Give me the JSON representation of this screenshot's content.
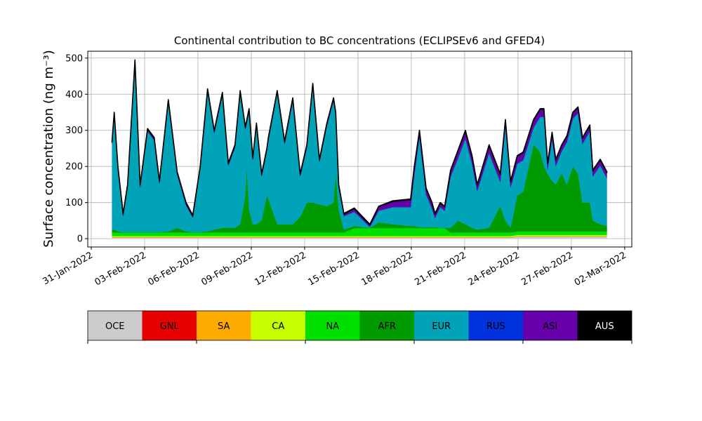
{
  "chart_data": {
    "type": "stacked_area",
    "title": "Continental contribution to BC concentrations (ECLIPSEv6 and GFED4)",
    "y_label": "Surface concentration (ng m⁻³)",
    "grid": true,
    "xlim": [
      "2022-01-30T19:16",
      "2022-03-02T09:36"
    ],
    "ylim": [
      -23,
      519
    ],
    "yticks": [
      0,
      100,
      200,
      300,
      400,
      500
    ],
    "xticks": [
      {
        "value": "2022-01-31T00:00",
        "label": "31-Jan-2022"
      },
      {
        "value": "2022-02-03T00:00",
        "label": "03-Feb-2022"
      },
      {
        "value": "2022-02-06T00:00",
        "label": "06-Feb-2022"
      },
      {
        "value": "2022-02-09T00:00",
        "label": "09-Feb-2022"
      },
      {
        "value": "2022-02-12T00:00",
        "label": "12-Feb-2022"
      },
      {
        "value": "2022-02-15T00:00",
        "label": "15-Feb-2022"
      },
      {
        "value": "2022-02-18T00:00",
        "label": "18-Feb-2022"
      },
      {
        "value": "2022-02-21T00:00",
        "label": "21-Feb-2022"
      },
      {
        "value": "2022-02-24T00:00",
        "label": "24-Feb-2022"
      },
      {
        "value": "2022-02-27T00:00",
        "label": "27-Feb-2022"
      },
      {
        "value": "2022-03-02T00:00",
        "label": "02-Mar-2022"
      }
    ],
    "x": [
      "2022-02-01T04:00",
      "2022-02-01T07:00",
      "2022-02-01T12:00",
      "2022-02-01T19:00",
      "2022-02-02T01:00",
      "2022-02-02T11:00",
      "2022-02-02T18:00",
      "2022-02-03T04:00",
      "2022-02-03T13:00",
      "2022-02-03T20:00",
      "2022-02-04T08:00",
      "2022-02-04T20:00",
      "2022-02-05T08:00",
      "2022-02-05T17:00",
      "2022-02-06T03:00",
      "2022-02-06T13:00",
      "2022-02-06T22:00",
      "2022-02-07T09:00",
      "2022-02-07T17:00",
      "2022-02-08T02:00",
      "2022-02-08T09:00",
      "2022-02-08T16:00",
      "2022-02-08T18:00",
      "2022-02-08T21:00",
      "2022-02-09T02:00",
      "2022-02-09T07:00",
      "2022-02-09T14:00",
      "2022-02-09T21:00",
      "2022-02-09T23:00",
      "2022-02-10T11:00",
      "2022-02-10T21:00",
      "2022-02-11T08:00",
      "2022-02-11T18:00",
      "2022-02-12T03:00",
      "2022-02-12T11:00",
      "2022-02-12T20:00",
      "2022-02-13T06:00",
      "2022-02-13T15:00",
      "2022-02-13T18:00",
      "2022-02-13T22:00",
      "2022-02-14T05:00",
      "2022-02-14T19:00",
      "2022-02-15T16:00",
      "2022-02-16T04:00",
      "2022-02-16T23:00",
      "2022-02-17T23:00",
      "2022-02-18T04:00",
      "2022-02-18T11:00",
      "2022-02-18T20:00",
      "2022-02-19T04:00",
      "2022-02-19T08:00",
      "2022-02-19T15:00",
      "2022-02-19T21:00",
      "2022-02-20T05:00",
      "2022-02-20T15:00",
      "2022-02-21T01:00",
      "2022-02-21T10:00",
      "2022-02-21T17:00",
      "2022-02-22T09:00",
      "2022-02-23T00:00",
      "2022-02-23T07:00",
      "2022-02-23T14:00",
      "2022-02-23T23:00",
      "2022-02-24T07:00",
      "2022-02-24T21:00",
      "2022-02-25T06:00",
      "2022-02-25T11:00",
      "2022-02-25T16:00",
      "2022-02-25T22:00",
      "2022-02-26T03:00",
      "2022-02-26T11:00",
      "2022-02-26T18:00",
      "2022-02-27T02:00",
      "2022-02-27T09:00",
      "2022-02-27T15:00",
      "2022-02-28T01:00",
      "2022-02-28T05:00",
      "2022-02-28T15:00",
      "2022-03-01T00:00"
    ],
    "series": [
      {
        "name": "OCE",
        "color": "#cccccc",
        "values": [
          3,
          3,
          3,
          3,
          3,
          3,
          3,
          3,
          3,
          3,
          3,
          3,
          3,
          3,
          3,
          3,
          3,
          3,
          3,
          3,
          3,
          3,
          3,
          3,
          3,
          3,
          3,
          3,
          3,
          3,
          3,
          3,
          3,
          3,
          3,
          3,
          3,
          3,
          3,
          3,
          3,
          3,
          3,
          3,
          3,
          3,
          3,
          3,
          3,
          3,
          3,
          3,
          3,
          3,
          3,
          3,
          3,
          3,
          3,
          3,
          3,
          3,
          6,
          6,
          6,
          6,
          6,
          6,
          6,
          6,
          6,
          6,
          6,
          6,
          6,
          6,
          6,
          6,
          6
        ]
      },
      {
        "name": "GNL",
        "color": "#e60000",
        "values": [
          0,
          0,
          0,
          0,
          0,
          0,
          0,
          0,
          0,
          0,
          0,
          0,
          0,
          0,
          0,
          0,
          0,
          0,
          0,
          0,
          0,
          0,
          0,
          0,
          0,
          0,
          0,
          0,
          0,
          0,
          0,
          0,
          0,
          0,
          0,
          0,
          0,
          0,
          0,
          0,
          0,
          0,
          0,
          0,
          0,
          0,
          0,
          0,
          0,
          0,
          0,
          0,
          0,
          0,
          0,
          0,
          0,
          0,
          0,
          0,
          0,
          0,
          0,
          0,
          0,
          0,
          0,
          0,
          0,
          0,
          0,
          0,
          0,
          0,
          0,
          0,
          0,
          0,
          0
        ]
      },
      {
        "name": "SA",
        "color": "#ffaa00",
        "values": [
          1,
          1,
          1,
          1,
          1,
          1,
          1,
          1,
          1,
          1,
          1,
          1,
          1,
          1,
          1,
          1,
          1,
          1,
          1,
          1,
          1,
          1,
          1,
          1,
          1,
          1,
          1,
          1,
          1,
          1,
          1,
          1,
          1,
          1,
          1,
          1,
          1,
          1,
          1,
          1,
          1,
          1,
          1,
          1,
          1,
          1,
          1,
          1,
          1,
          1,
          1,
          1,
          1,
          1,
          1,
          1,
          1,
          1,
          1,
          1,
          1,
          1,
          1,
          1,
          1,
          1,
          1,
          1,
          1,
          1,
          1,
          1,
          1,
          1,
          1,
          1,
          1,
          1,
          1
        ]
      },
      {
        "name": "CA",
        "color": "#c8ff00",
        "values": [
          3,
          3,
          3,
          3,
          3,
          3,
          3,
          3,
          3,
          3,
          3,
          3,
          3,
          3,
          3,
          3,
          3,
          3,
          3,
          3,
          3,
          3,
          3,
          3,
          3,
          3,
          3,
          3,
          3,
          3,
          3,
          3,
          3,
          3,
          3,
          3,
          3,
          3,
          3,
          3,
          3,
          3,
          3,
          3,
          3,
          3,
          3,
          3,
          3,
          3,
          3,
          3,
          3,
          3,
          3,
          3,
          3,
          3,
          3,
          3,
          3,
          3,
          3,
          3,
          3,
          3,
          3,
          3,
          3,
          3,
          3,
          3,
          3,
          3,
          3,
          3,
          3,
          3,
          3
        ]
      },
      {
        "name": "NA",
        "color": "#00e000",
        "values": [
          10,
          10,
          10,
          10,
          10,
          10,
          10,
          10,
          10,
          10,
          10,
          10,
          10,
          10,
          10,
          10,
          10,
          10,
          10,
          10,
          10,
          10,
          10,
          10,
          10,
          10,
          10,
          10,
          10,
          10,
          10,
          10,
          10,
          10,
          10,
          10,
          10,
          10,
          10,
          10,
          10,
          22,
          22,
          22,
          22,
          22,
          22,
          22,
          22,
          22,
          22,
          22,
          22,
          10,
          10,
          10,
          10,
          10,
          10,
          10,
          10,
          10,
          10,
          10,
          10,
          10,
          10,
          10,
          10,
          10,
          10,
          10,
          10,
          10,
          10,
          10,
          10,
          10,
          10
        ]
      },
      {
        "name": "AFR",
        "color": "#009a00",
        "values": [
          8,
          8,
          3,
          1,
          1,
          1,
          1,
          1,
          1,
          1,
          3,
          13,
          3,
          1,
          1,
          3,
          8,
          13,
          13,
          13,
          23,
          103,
          183,
          63,
          23,
          23,
          33,
          103,
          93,
          23,
          23,
          23,
          43,
          83,
          83,
          78,
          73,
          83,
          163,
          63,
          8,
          6,
          1,
          16,
          11,
          6,
          6,
          3,
          3,
          3,
          3,
          1,
          1,
          13,
          33,
          23,
          13,
          8,
          13,
          73,
          33,
          13,
          100,
          110,
          240,
          220,
          180,
          160,
          140,
          130,
          160,
          130,
          180,
          160,
          80,
          80,
          30,
          20,
          15
        ]
      },
      {
        "name": "EUR",
        "color": "#00a3b8",
        "values": [
          237,
          317,
          172,
          44,
          124,
          469,
          124,
          279,
          254,
          134,
          357,
          147,
          72,
          40,
          174,
          387,
          267,
          367,
          172,
          222,
          362,
          182,
          122,
          272,
          177,
          272,
          122,
          122,
          162,
          362,
          222,
          342,
          112,
          152,
          322,
          117,
          222,
          282,
          162,
          62,
          37,
          39,
          2,
          32,
          47,
          52,
          142,
          250,
          90,
          50,
          25,
          57,
          47,
          142,
          172,
          237,
          177,
          107,
          207,
          67,
          262,
          112,
          87,
          87,
          47,
          97,
          137,
          12,
          117,
          52,
          62,
          117,
          132,
          167,
          162,
          197,
          122,
          162,
          132
        ]
      },
      {
        "name": "RUS",
        "color": "#0033dd",
        "values": [
          1,
          1,
          1,
          1,
          1,
          1,
          1,
          1,
          1,
          1,
          1,
          1,
          1,
          1,
          1,
          1,
          1,
          1,
          1,
          1,
          1,
          1,
          1,
          1,
          1,
          1,
          1,
          1,
          1,
          1,
          1,
          1,
          1,
          1,
          1,
          1,
          1,
          1,
          1,
          1,
          1,
          1,
          1,
          1,
          1,
          1,
          1,
          1,
          1,
          1,
          1,
          1,
          1,
          1,
          1,
          1,
          1,
          1,
          1,
          1,
          1,
          1,
          1,
          1,
          1,
          1,
          1,
          1,
          1,
          1,
          1,
          1,
          1,
          1,
          1,
          1,
          1,
          1,
          1
        ]
      },
      {
        "name": "ASI",
        "color": "#6600aa",
        "values": [
          5,
          5,
          5,
          5,
          5,
          5,
          5,
          5,
          5,
          5,
          5,
          5,
          5,
          4,
          5,
          5,
          5,
          5,
          5,
          5,
          5,
          5,
          5,
          5,
          5,
          5,
          5,
          5,
          5,
          5,
          5,
          5,
          5,
          5,
          5,
          5,
          5,
          5,
          5,
          5,
          5,
          8,
          5,
          10,
          15,
          20,
          20,
          15,
          15,
          15,
          10,
          10,
          10,
          15,
          20,
          20,
          20,
          15,
          20,
          20,
          15,
          15,
          20,
          20,
          20,
          20,
          20,
          15,
          15,
          15,
          15,
          15,
          15,
          15,
          15,
          15,
          15,
          15,
          15
        ]
      },
      {
        "name": "AUS",
        "color": "#000000",
        "values": [
          2,
          2,
          2,
          2,
          2,
          2,
          2,
          2,
          2,
          2,
          2,
          2,
          2,
          2,
          2,
          2,
          2,
          2,
          2,
          2,
          2,
          2,
          2,
          2,
          2,
          2,
          2,
          2,
          2,
          2,
          2,
          2,
          2,
          2,
          2,
          2,
          2,
          2,
          2,
          2,
          2,
          2,
          2,
          2,
          2,
          2,
          2,
          2,
          2,
          2,
          2,
          2,
          2,
          2,
          2,
          2,
          2,
          2,
          2,
          2,
          2,
          2,
          2,
          2,
          2,
          2,
          2,
          2,
          2,
          2,
          2,
          2,
          2,
          2,
          2,
          2,
          2,
          2,
          2
        ]
      }
    ]
  }
}
